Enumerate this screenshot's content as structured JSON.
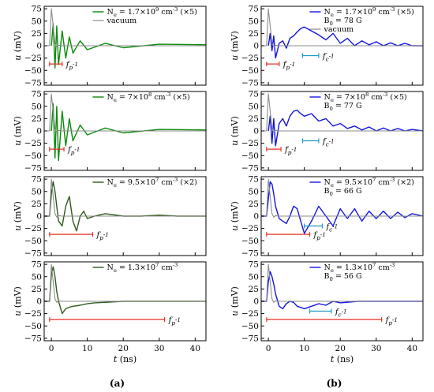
{
  "columns": [
    {
      "label": "(a)",
      "xlabel": "t (ns)",
      "ylabel": "u (mV)",
      "panels": [
        {
          "legend": [
            "N_e = 1.7×10^9 cm^-3 (×5)",
            "vacuum"
          ],
          "ticks": [
            {
              "key": "fp",
              "text": "f_p^-1",
              "x0": -0.5,
              "x1": 3.0,
              "y": -37
            }
          ]
        },
        {
          "legend": [
            "N_e = 7×10^8 cm^-3 (×5)"
          ],
          "ticks": [
            {
              "key": "fp",
              "text": "f_p^-1",
              "x0": -0.5,
              "x1": 3.5,
              "y": -37
            }
          ]
        },
        {
          "legend": [
            "N_e = 9.5×10^7 cm^-3 (×2)"
          ],
          "ticks": [
            {
              "key": "fp",
              "text": "f_p^-1",
              "x0": -0.5,
              "x1": 11.5,
              "y": -37
            }
          ]
        },
        {
          "legend": [
            "N_e = 1.3×10^7 cm^-3"
          ],
          "ticks": [
            {
              "key": "fp",
              "text": "f_p^-1",
              "x0": -0.5,
              "x1": 31.5,
              "y": -37
            }
          ]
        }
      ]
    },
    {
      "label": "(b)",
      "xlabel": "t (ns)",
      "ylabel": "u (mV)",
      "panels": [
        {
          "legend": [
            "N_e = 1.7×10^9 cm^-3 (×5)",
            "B_0 = 78 G",
            "vacuum"
          ],
          "ticks": [
            {
              "key": "fc",
              "text": "f_c^-1",
              "x0": 9.5,
              "x1": 14.0,
              "y": -20
            },
            {
              "key": "fp",
              "text": "f_p^-1",
              "x0": -0.5,
              "x1": 3.0,
              "y": -37
            }
          ]
        },
        {
          "legend": [
            "N_e = 7×10^8 cm^-3 (×5)",
            "B_0 = 77 G"
          ],
          "ticks": [
            {
              "key": "fc",
              "text": "f_c^-1",
              "x0": 9.5,
              "x1": 14.0,
              "y": -20
            },
            {
              "key": "fp",
              "text": "f_p^-1",
              "x0": -0.5,
              "x1": 3.5,
              "y": -37
            }
          ]
        },
        {
          "legend": [
            "N_e = 9.5×10^7 cm^-3 (×2)",
            "B_0 = 66 G"
          ],
          "ticks": [
            {
              "key": "fc",
              "text": "f_c^-1",
              "x0": 10.0,
              "x1": 15.0,
              "y": -20
            },
            {
              "key": "fp",
              "text": "f_p^-1",
              "x0": -0.5,
              "x1": 11.5,
              "y": -37
            }
          ]
        },
        {
          "legend": [
            "N_e = 1.3×10^7 cm^-3",
            "B_0 = 56 G"
          ],
          "ticks": [
            {
              "key": "fc",
              "text": "f_c^-1",
              "x0": 11.5,
              "x1": 17.5,
              "y": -20
            },
            {
              "key": "fp",
              "text": "f_p^-1",
              "x0": -0.5,
              "x1": 31.5,
              "y": -37
            }
          ]
        }
      ]
    }
  ],
  "colors": {
    "green": "#0a8a0a",
    "darkgreen": "#2e5a1c",
    "blue": "#1515e0",
    "gray": "#8c8c8c",
    "red": "#e8322a",
    "cyan": "#1f9ac2",
    "axis": "#000000"
  },
  "chart_data": [
    {
      "type": "line",
      "panel": "a1",
      "xlabel": "t (ns)",
      "ylabel": "u (mV)",
      "xlim": [
        -2,
        43
      ],
      "ylim": [
        -80,
        80
      ],
      "xticks": [
        0,
        10,
        20,
        30,
        40
      ],
      "yticks": [
        -75,
        -50,
        -25,
        0,
        25,
        50,
        75
      ],
      "series": [
        {
          "name": "N_e = 1.7×10^9 cm^-3 (×5)",
          "color": "green",
          "x": [
            0,
            0.5,
            1,
            1.5,
            2,
            3,
            4,
            5,
            6,
            8,
            10,
            15,
            20,
            30,
            43
          ],
          "y": [
            0,
            45,
            -45,
            40,
            -38,
            30,
            -25,
            18,
            -15,
            10,
            -8,
            5,
            -4,
            3,
            2
          ]
        },
        {
          "name": "vacuum",
          "color": "gray",
          "x": [
            -2,
            -0.5,
            0,
            0.5,
            1,
            1.5,
            2,
            3,
            5,
            10,
            43
          ],
          "y": [
            0,
            0,
            75,
            40,
            5,
            -2,
            1,
            0,
            0,
            0,
            0
          ]
        }
      ]
    },
    {
      "type": "line",
      "panel": "a2",
      "xlabel": "t (ns)",
      "ylabel": "u (mV)",
      "xlim": [
        -2,
        43
      ],
      "ylim": [
        -80,
        80
      ],
      "xticks": [
        0,
        10,
        20,
        30,
        40
      ],
      "yticks": [
        -75,
        -50,
        -25,
        0,
        25,
        50,
        75
      ],
      "series": [
        {
          "name": "N_e = 7×10^8 cm^-3 (×5)",
          "color": "green",
          "x": [
            0,
            0.5,
            1,
            1.5,
            2,
            3,
            4,
            5,
            6,
            8,
            10,
            15,
            20,
            30,
            43
          ],
          "y": [
            0,
            55,
            -55,
            50,
            -60,
            40,
            -30,
            25,
            -20,
            12,
            -8,
            6,
            -4,
            3,
            2
          ]
        },
        {
          "name": "vacuum",
          "color": "gray",
          "x": [
            -2,
            -0.5,
            0,
            0.5,
            1,
            1.5,
            2,
            3,
            5,
            10,
            43
          ],
          "y": [
            0,
            0,
            75,
            40,
            5,
            -2,
            1,
            0,
            0,
            0,
            0
          ]
        }
      ]
    },
    {
      "type": "line",
      "panel": "a3",
      "xlabel": "t (ns)",
      "ylabel": "u (mV)",
      "xlim": [
        -2,
        43
      ],
      "ylim": [
        -80,
        80
      ],
      "xticks": [
        0,
        10,
        20,
        30,
        40
      ],
      "yticks": [
        -75,
        -50,
        -25,
        0,
        25,
        50,
        75
      ],
      "series": [
        {
          "name": "N_e = 9.5×10^7 cm^-3 (×2)",
          "color": "darkgreen",
          "x": [
            -2,
            -0.5,
            0,
            0.5,
            1,
            1.5,
            2,
            3,
            4,
            5,
            6,
            7,
            8,
            9,
            10,
            12,
            15,
            20,
            25,
            30,
            35,
            43
          ],
          "y": [
            0,
            0,
            45,
            70,
            50,
            20,
            -10,
            -20,
            20,
            40,
            -10,
            -30,
            0,
            10,
            -5,
            0,
            5,
            0,
            0,
            2,
            0,
            0
          ]
        },
        {
          "name": "vacuum",
          "color": "gray",
          "x": [
            -2,
            -0.5,
            0,
            0.5,
            1,
            1.5,
            2,
            3,
            5,
            10,
            43
          ],
          "y": [
            0,
            0,
            75,
            40,
            5,
            -2,
            1,
            0,
            0,
            0,
            0
          ]
        }
      ]
    },
    {
      "type": "line",
      "panel": "a4",
      "xlabel": "t (ns)",
      "ylabel": "u (mV)",
      "xlim": [
        -2,
        43
      ],
      "ylim": [
        -80,
        80
      ],
      "xticks": [
        0,
        10,
        20,
        30,
        40
      ],
      "yticks": [
        -75,
        -50,
        -25,
        0,
        25,
        50,
        75
      ],
      "series": [
        {
          "name": "N_e = 1.3×10^7 cm^-3",
          "color": "darkgreen",
          "x": [
            -2,
            -0.5,
            0,
            0.5,
            1,
            1.5,
            2,
            3,
            4,
            5,
            6,
            8,
            10,
            12,
            15,
            20,
            25,
            30,
            35,
            43
          ],
          "y": [
            0,
            0,
            55,
            70,
            50,
            20,
            0,
            -25,
            -15,
            -12,
            -10,
            -8,
            -5,
            -3,
            -2,
            0,
            0,
            0,
            0,
            0
          ]
        },
        {
          "name": "vacuum",
          "color": "gray",
          "x": [
            -2,
            -0.5,
            0,
            0.5,
            1,
            1.5,
            2,
            3,
            5,
            10,
            43
          ],
          "y": [
            0,
            0,
            75,
            40,
            5,
            -2,
            1,
            0,
            0,
            0,
            0
          ]
        }
      ]
    },
    {
      "type": "line",
      "panel": "b1",
      "xlabel": "t (ns)",
      "ylabel": "u (mV)",
      "xlim": [
        -2,
        43
      ],
      "ylim": [
        -80,
        80
      ],
      "xticks": [
        0,
        10,
        20,
        30,
        40
      ],
      "yticks": [
        -75,
        -50,
        -25,
        0,
        25,
        50,
        75
      ],
      "series": [
        {
          "name": "N_e = 1.7×10^9 cm^-3 (×5)",
          "color": "blue",
          "x": [
            0,
            0.5,
            1,
            1.5,
            2,
            3,
            4,
            5,
            6,
            7,
            8,
            9,
            10,
            12,
            14,
            16,
            18,
            20,
            22,
            24,
            26,
            28,
            30,
            32,
            34,
            36,
            38,
            40,
            43
          ],
          "y": [
            0,
            25,
            -10,
            20,
            -25,
            5,
            10,
            -5,
            15,
            20,
            28,
            35,
            38,
            30,
            22,
            12,
            25,
            5,
            15,
            0,
            10,
            2,
            8,
            0,
            6,
            0,
            5,
            0,
            0
          ]
        },
        {
          "name": "vacuum",
          "color": "gray",
          "x": [
            -2,
            -0.5,
            0,
            0.5,
            1,
            1.5,
            2,
            3,
            5,
            10,
            43
          ],
          "y": [
            0,
            0,
            75,
            40,
            5,
            -2,
            1,
            0,
            0,
            0,
            0
          ]
        }
      ]
    },
    {
      "type": "line",
      "panel": "b2",
      "xlabel": "t (ns)",
      "ylabel": "u (mV)",
      "xlim": [
        -2,
        43
      ],
      "ylim": [
        -80,
        80
      ],
      "xticks": [
        0,
        10,
        20,
        30,
        40
      ],
      "yticks": [
        -75,
        -50,
        -25,
        0,
        25,
        50,
        75
      ],
      "series": [
        {
          "name": "N_e = 7×10^8 cm^-3 (×5)",
          "color": "blue",
          "x": [
            0,
            0.5,
            1,
            1.5,
            2,
            3,
            4,
            5,
            6,
            7,
            8,
            9,
            10,
            12,
            14,
            16,
            18,
            20,
            22,
            24,
            26,
            28,
            30,
            32,
            34,
            36,
            38,
            40,
            43
          ],
          "y": [
            0,
            30,
            -25,
            25,
            -30,
            15,
            25,
            10,
            30,
            40,
            42,
            35,
            30,
            35,
            20,
            25,
            10,
            15,
            5,
            10,
            2,
            8,
            0,
            6,
            0,
            5,
            0,
            3,
            0
          ]
        },
        {
          "name": "vacuum",
          "color": "gray",
          "x": [
            -2,
            -0.5,
            0,
            0.5,
            1,
            1.5,
            2,
            3,
            5,
            10,
            43
          ],
          "y": [
            0,
            0,
            75,
            40,
            5,
            -2,
            1,
            0,
            0,
            0,
            0
          ]
        }
      ]
    },
    {
      "type": "line",
      "panel": "b3",
      "xlabel": "t (ns)",
      "ylabel": "u (mV)",
      "xlim": [
        -2,
        43
      ],
      "ylim": [
        -80,
        80
      ],
      "xticks": [
        0,
        10,
        20,
        30,
        40
      ],
      "yticks": [
        -75,
        -50,
        -25,
        0,
        25,
        50,
        75
      ],
      "series": [
        {
          "name": "N_e = 9.5×10^7 cm^-3 (×2)",
          "color": "blue",
          "x": [
            -2,
            -0.5,
            0,
            0.5,
            1,
            1.5,
            2,
            3,
            4,
            5,
            6,
            7,
            8,
            9,
            10,
            12,
            14,
            16,
            18,
            20,
            22,
            24,
            26,
            28,
            30,
            32,
            34,
            36,
            38,
            40,
            43
          ],
          "y": [
            0,
            0,
            35,
            70,
            65,
            45,
            20,
            -5,
            -10,
            -15,
            0,
            20,
            15,
            -10,
            -35,
            -10,
            20,
            0,
            -20,
            15,
            -5,
            15,
            -10,
            10,
            -5,
            10,
            -5,
            8,
            -3,
            5,
            0
          ]
        },
        {
          "name": "vacuum",
          "color": "gray",
          "x": [
            -2,
            -0.5,
            0,
            0.5,
            1,
            1.5,
            2,
            3,
            5,
            10,
            43
          ],
          "y": [
            0,
            0,
            75,
            40,
            5,
            -2,
            1,
            0,
            0,
            0,
            0
          ]
        }
      ]
    },
    {
      "type": "line",
      "panel": "b4",
      "xlabel": "t (ns)",
      "ylabel": "u (mV)",
      "xlim": [
        -2,
        43
      ],
      "ylim": [
        -80,
        80
      ],
      "xticks": [
        0,
        10,
        20,
        30,
        40
      ],
      "yticks": [
        -75,
        -50,
        -25,
        0,
        25,
        50,
        75
      ],
      "series": [
        {
          "name": "N_e = 1.3×10^7 cm^-3",
          "color": "blue",
          "x": [
            -2,
            -0.5,
            0,
            0.5,
            1,
            1.5,
            2,
            3,
            4,
            5,
            6,
            7,
            8,
            10,
            12,
            14,
            16,
            18,
            20,
            25,
            30,
            35,
            43
          ],
          "y": [
            0,
            0,
            40,
            60,
            50,
            35,
            15,
            -10,
            -15,
            -5,
            0,
            -2,
            -10,
            -15,
            -10,
            -5,
            -8,
            0,
            -3,
            0,
            0,
            0,
            0
          ]
        },
        {
          "name": "vacuum",
          "color": "gray",
          "x": [
            -2,
            -0.5,
            0,
            0.5,
            1,
            1.5,
            2,
            3,
            5,
            10,
            43
          ],
          "y": [
            0,
            0,
            75,
            40,
            5,
            -2,
            1,
            0,
            0,
            0,
            0
          ]
        }
      ]
    }
  ]
}
